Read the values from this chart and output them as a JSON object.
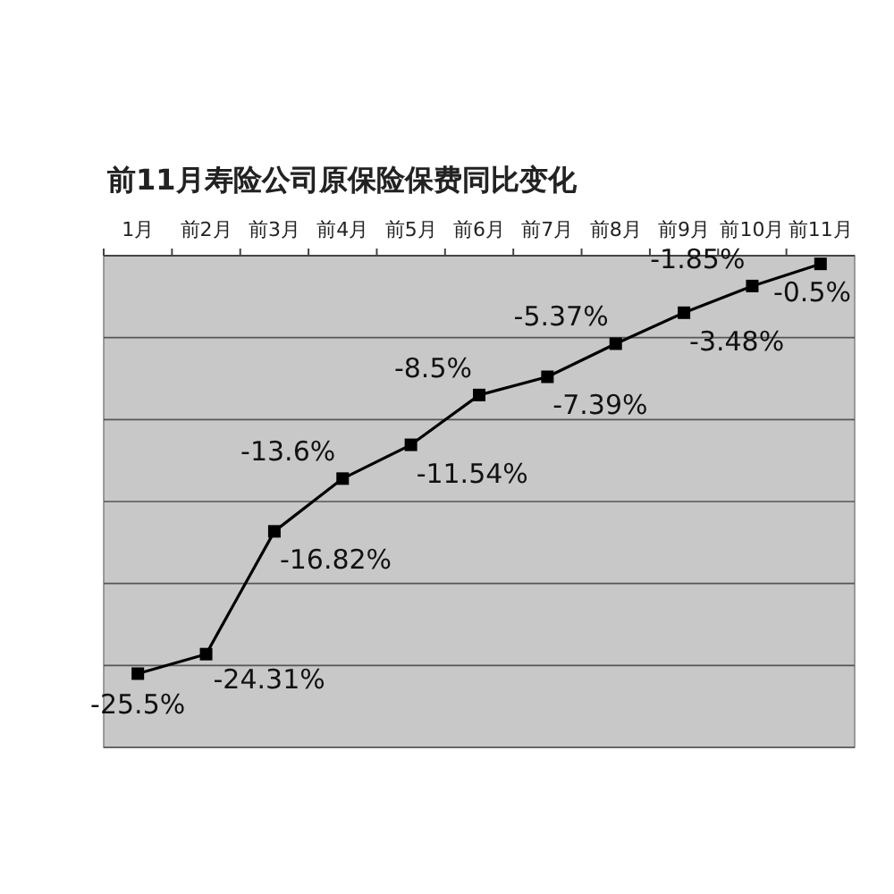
{
  "chart_data": {
    "type": "line",
    "title": "前11月寿险公司原保险保费同比变化",
    "categories": [
      "1月",
      "前2月",
      "前3月",
      "前4月",
      "前5月",
      "前6月",
      "前7月",
      "前8月",
      "前9月",
      "前10月",
      "前11月"
    ],
    "values": [
      -25.5,
      -24.31,
      -16.82,
      -13.6,
      -11.54,
      -8.5,
      -7.39,
      -5.37,
      -3.48,
      -1.85,
      -0.5
    ],
    "value_labels": [
      "-25.5%",
      "-24.31%",
      "-16.82%",
      "-13.6%",
      "-11.54%",
      "-8.5%",
      "-7.39%",
      "-5.37%",
      "-3.48%",
      "-1.85%",
      "-0.5%"
    ],
    "color": "#000000",
    "ylim": [
      -30,
      0
    ],
    "yticks": [
      {
        "value": 0,
        "label": null
      },
      {
        "value": -5,
        "label": null
      },
      {
        "value": -10,
        "label": null
      },
      {
        "value": -15,
        "label": null
      },
      {
        "value": -20,
        "label": null
      },
      {
        "value": -25,
        "label": null
      },
      {
        "value": -30,
        "label": null
      }
    ],
    "grid": "y",
    "tick_labels": "x",
    "marker": "square",
    "line_style": "solid"
  }
}
